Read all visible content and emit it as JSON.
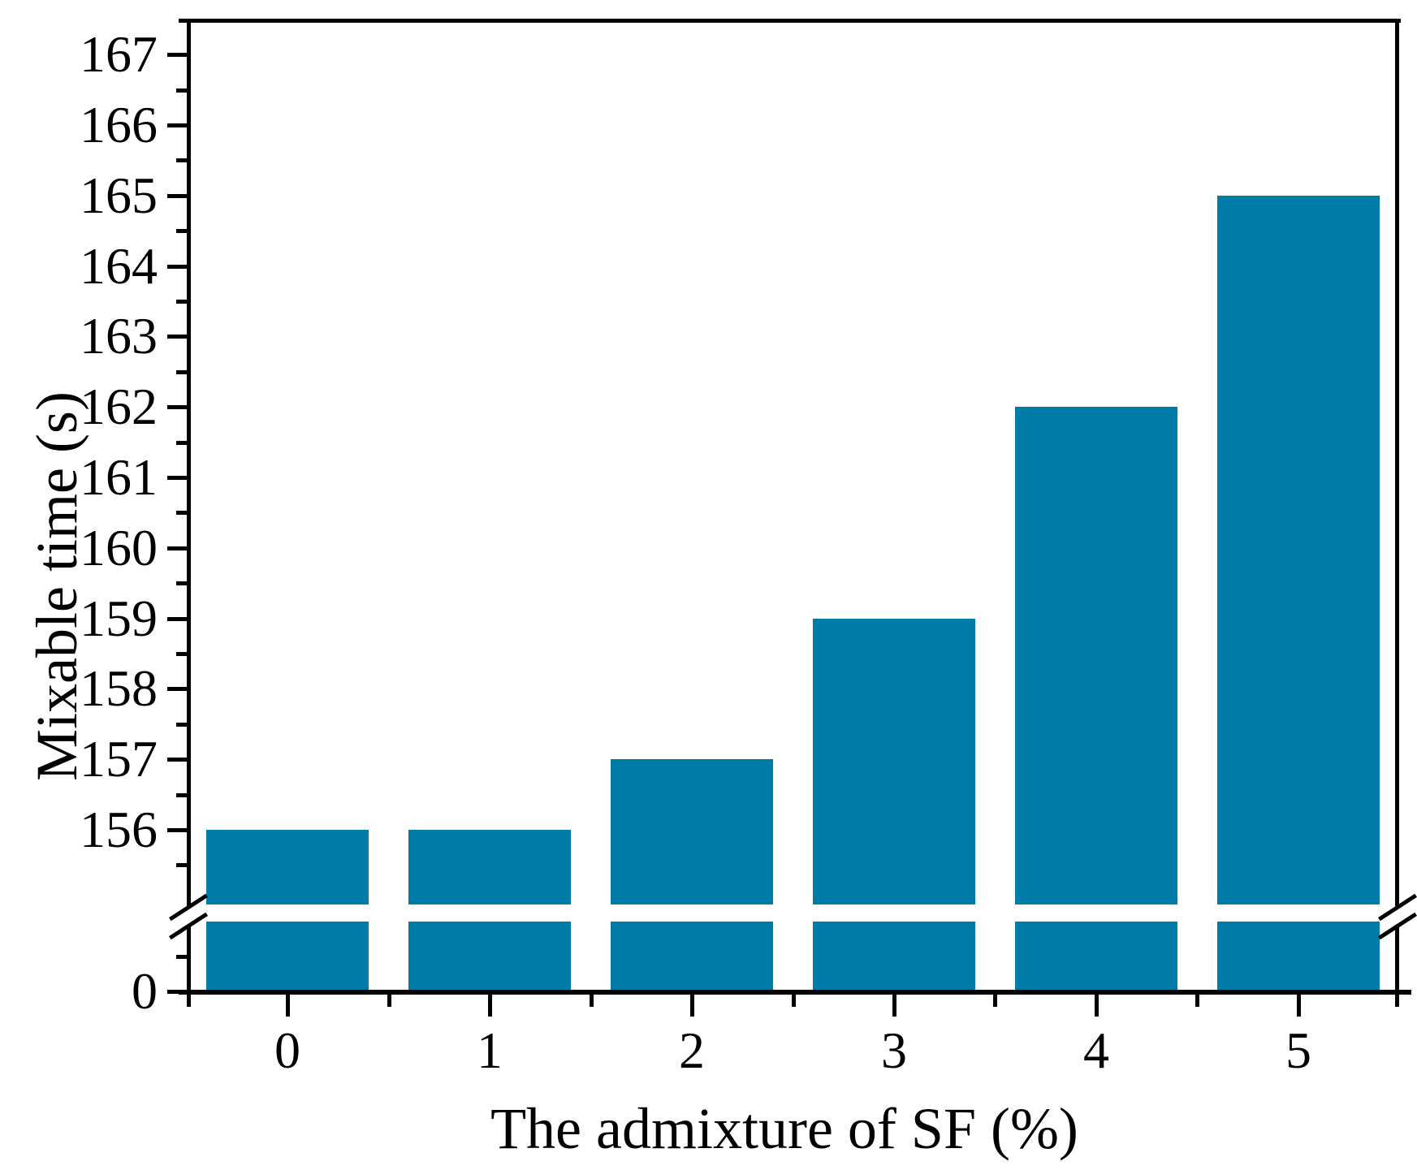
{
  "chart_data": {
    "type": "bar",
    "title": "",
    "xlabel": "The admixture of SF (%)",
    "ylabel": "Mixable time (s)",
    "categories": [
      "0",
      "1",
      "2",
      "3",
      "4",
      "5"
    ],
    "values": [
      156,
      156,
      157,
      159,
      162,
      165
    ],
    "x_axis": {
      "tick_labels": [
        "0",
        "1",
        "2",
        "3",
        "4",
        "5"
      ],
      "minor_ticks_between_categories": true
    },
    "y_axis": {
      "major_tick_labels": [
        "167",
        "166",
        "165",
        "164",
        "163",
        "162",
        "161",
        "160",
        "159",
        "158",
        "157",
        "156"
      ],
      "major_tick_values": [
        167,
        166,
        165,
        164,
        163,
        162,
        161,
        160,
        159,
        158,
        157,
        156
      ],
      "minor_tick_values": [
        166.5,
        165.5,
        164.5,
        163.5,
        162.5,
        161.5,
        160.5,
        159.5,
        158.5,
        157.5,
        156.5,
        155.5
      ],
      "upper_segment_range": [
        155,
        167.5
      ],
      "origin_tick_label": "0",
      "origin_tick_value": 0,
      "broken_axis": true,
      "break_hides_range": [
        0,
        155
      ]
    },
    "legend": null,
    "grid": false,
    "bar_color": "#007CA8",
    "axis_color": "#000000",
    "text_color": "#000000",
    "background_color": "#FFFFFF"
  }
}
